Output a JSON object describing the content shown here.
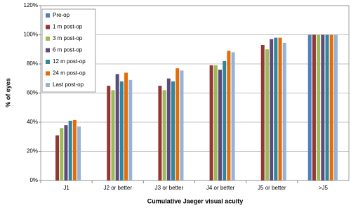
{
  "chart_data": {
    "type": "bar",
    "x_label": "Cumulative Jaeger visual acuity",
    "y_label": "% of eyes",
    "categories": [
      "J1",
      "J2 or better",
      "J3 or better",
      "J4 or better",
      "J5 or better",
      ">J5"
    ],
    "series": [
      {
        "name": "Pre-op",
        "color": "#4f81bd",
        "values": [
          0,
          0,
          0,
          0,
          0,
          100
        ]
      },
      {
        "name": "1 m post-op",
        "color": "#943634",
        "values": [
          31,
          65,
          65,
          79,
          93,
          100
        ]
      },
      {
        "name": "3 m post-op",
        "color": "#9bbb59",
        "values": [
          36,
          62,
          62,
          79,
          90,
          100
        ]
      },
      {
        "name": "6 m post-op",
        "color": "#604a7b",
        "values": [
          38,
          73,
          70,
          76,
          97,
          100
        ]
      },
      {
        "name": "12 m post-op",
        "color": "#31859c",
        "values": [
          41,
          68,
          68,
          82,
          98,
          100
        ]
      },
      {
        "name": "24 m post-op",
        "color": "#e46c0a",
        "values": [
          41.5,
          74,
          77,
          89,
          98,
          100
        ]
      },
      {
        "name": "Last post-op",
        "color": "#95b3d7",
        "values": [
          37,
          69,
          75.5,
          88,
          94.5,
          100
        ]
      }
    ],
    "ylim": [
      0,
      120
    ],
    "yticks": [
      {
        "value": 0,
        "label": "0%"
      },
      {
        "value": 20,
        "label": "20%"
      },
      {
        "value": 40,
        "label": "40%"
      },
      {
        "value": 60,
        "label": "60%"
      },
      {
        "value": 80,
        "label": "80%"
      },
      {
        "value": 100,
        "label": "100%"
      },
      {
        "value": 120,
        "label": "120%"
      }
    ],
    "grid": true,
    "legend": "upper left"
  }
}
